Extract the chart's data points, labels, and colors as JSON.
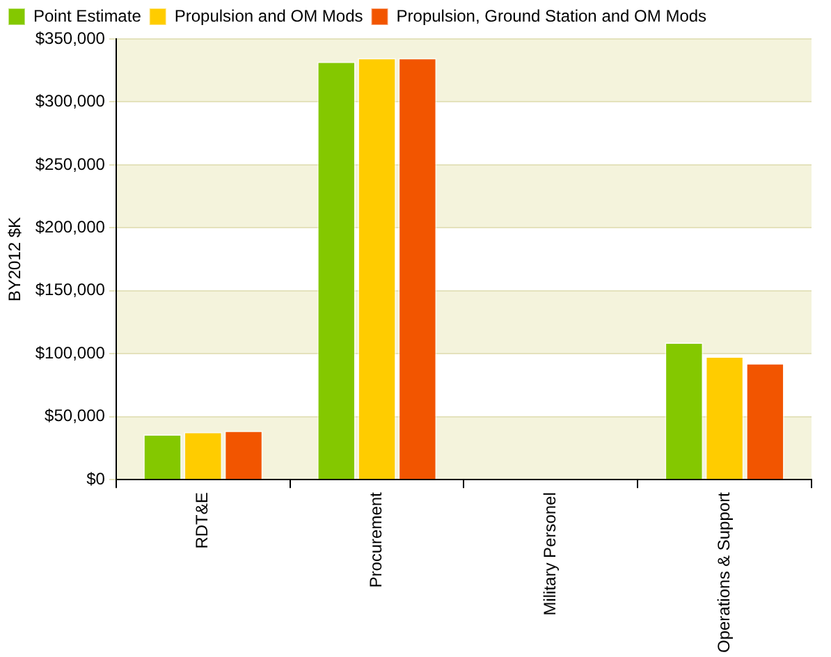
{
  "chart_data": {
    "type": "bar",
    "ylabel": "BY2012 $K",
    "categories": [
      "RDT&E",
      "Procurement",
      "Military Personel",
      "Operations & Support"
    ],
    "series": [
      {
        "name": "Point Estimate",
        "color": "#84c800",
        "values": [
          36000,
          332000,
          0,
          109000
        ]
      },
      {
        "name": "Propulsion and OM Mods",
        "color": "#ffcc00",
        "values": [
          38000,
          335000,
          0,
          98000
        ]
      },
      {
        "name": "Propulsion, Ground Station and OM Mods",
        "color": "#f25500",
        "values": [
          39000,
          335000,
          0,
          92500
        ]
      }
    ],
    "ylim": [
      0,
      350000
    ],
    "yticks": [
      {
        "value": 0,
        "label": "$0"
      },
      {
        "value": 50000,
        "label": "$50,000"
      },
      {
        "value": 100000,
        "label": "$100,000"
      },
      {
        "value": 150000,
        "label": "$150,000"
      },
      {
        "value": 200000,
        "label": "$200,000"
      },
      {
        "value": 250000,
        "label": "$250,000"
      },
      {
        "value": 300000,
        "label": "$300,000"
      },
      {
        "value": 350000,
        "label": "$350,000"
      }
    ],
    "grid": "y",
    "legend": "top left"
  }
}
